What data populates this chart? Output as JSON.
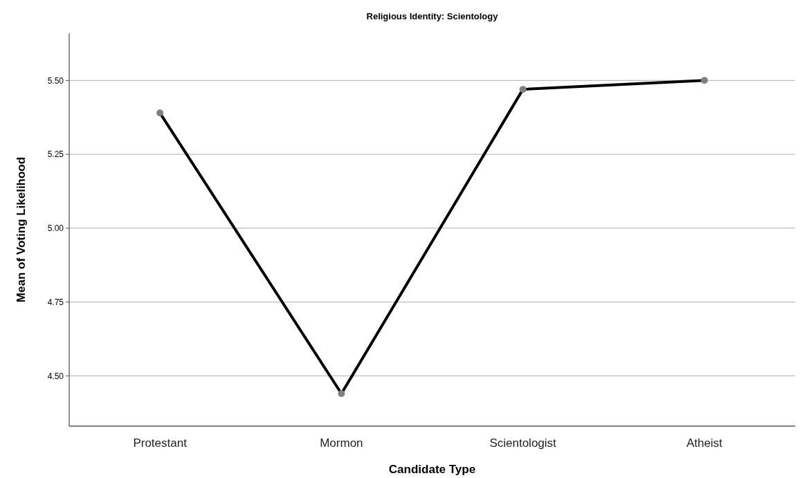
{
  "chart_data": {
    "type": "line",
    "title": "Religious Identity: Scientology",
    "xlabel": "Candidate Type",
    "ylabel": "Mean of Voting Likelihood",
    "categories": [
      "Protestant",
      "Mormon",
      "Scientologist",
      "Atheist"
    ],
    "series": [
      {
        "color": "#000000",
        "values": [
          5.39,
          4.44,
          5.47,
          5.5
        ]
      }
    ],
    "ylim": [
      4.33,
      5.66
    ],
    "yticks": [
      {
        "value": 4.5,
        "label": "4.50"
      },
      {
        "value": 4.75,
        "label": "4.75"
      },
      {
        "value": 5,
        "label": "5.00"
      },
      {
        "value": 5.25,
        "label": "5.25"
      },
      {
        "value": 5.5,
        "label": "5.50"
      }
    ],
    "grid": "y",
    "marker": "circle",
    "line_style": "solid"
  }
}
